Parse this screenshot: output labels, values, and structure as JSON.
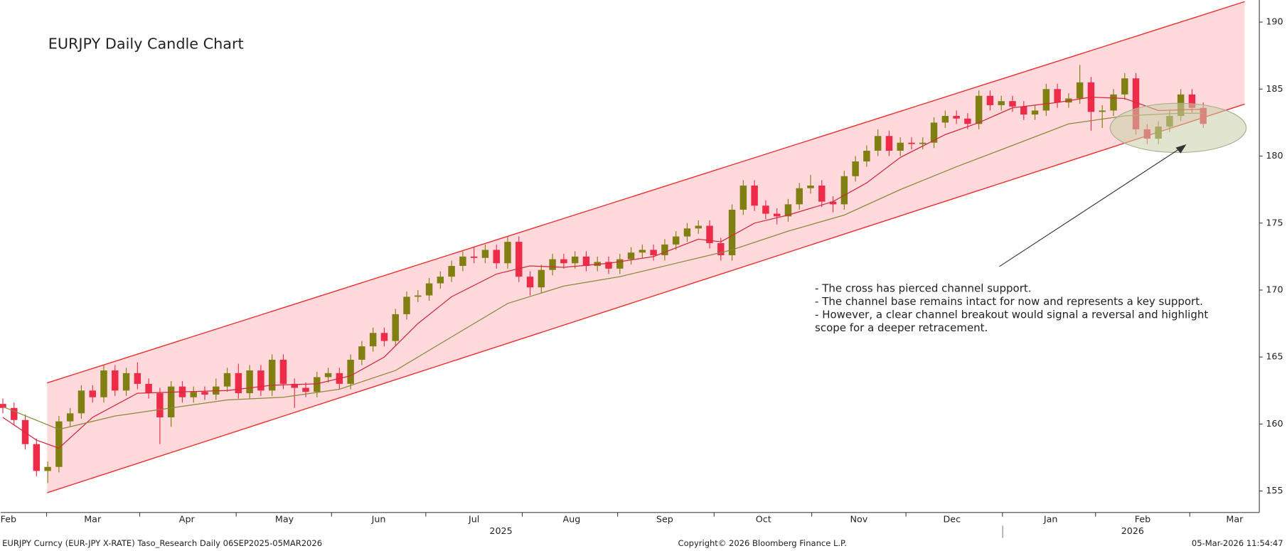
{
  "chart_data": {
    "type": "candlestick",
    "title": "EURJPY Daily Candle Chart",
    "annotation": [
      "- The cross has pierced channel support.",
      "- The channel base remains intact for now and represents a key support.",
      "- However, a clear channel breakout would signal a reversal and highlight",
      "scope for a deeper retracement."
    ],
    "footer_left": "EURJPY Curncy (EUR-JPY X-RATE) Taso_Research Daily 06SEP2025-05MAR2026",
    "footer_center": "Copyright© 2026 Bloomberg Finance L.P.",
    "footer_right": "05-Mar-2026 11:54:47",
    "up_color": "#7f7f12",
    "down_color": "#ee2c4a",
    "channel_color": "#ee2c2c",
    "channel_fill": "#ffd9dc",
    "xlim": [
      -0.2,
      112
    ],
    "ylim": [
      153.4,
      191.65
    ],
    "yticks": [
      155,
      160,
      165,
      170,
      175,
      180,
      185,
      190
    ],
    "month_separators": [
      3.9,
      12.2,
      20.8,
      29.3,
      37.7,
      46.3,
      54.8,
      63.4,
      72.1,
      80.5,
      89.1,
      97.4,
      105.8
    ],
    "xticks": [
      {
        "value": 0.5,
        "label": "Feb"
      },
      {
        "value": 8.0,
        "label": "Mar"
      },
      {
        "value": 16.4,
        "label": "Apr"
      },
      {
        "value": 25.1,
        "label": "May"
      },
      {
        "value": 33.5,
        "label": "Jun"
      },
      {
        "value": 42.0,
        "label": "Jul"
      },
      {
        "value": 50.7,
        "label": "Aug"
      },
      {
        "value": 59.0,
        "label": "Sep"
      },
      {
        "value": 67.8,
        "label": "Oct"
      },
      {
        "value": 76.3,
        "label": "Nov"
      },
      {
        "value": 84.6,
        "label": "Dec"
      },
      {
        "value": 93.4,
        "label": "Jan"
      },
      {
        "value": 101.6,
        "label": "Feb"
      },
      {
        "value": 109.8,
        "label": "Mar"
      }
    ],
    "year_ticks": [
      {
        "value": 44.4,
        "label": "2025"
      },
      {
        "value": 100.7,
        "label": "2026"
      }
    ],
    "channel": {
      "x": [
        3.95,
        110.7
      ],
      "upper": [
        163.07,
        191.53
      ],
      "lower": [
        154.87,
        183.88
      ]
    },
    "open": [
      161.5,
      161.2,
      160.3,
      158.5,
      156.5,
      156.8,
      160.2,
      160.8,
      162.5,
      162.0,
      164.0,
      162.5,
      163.8,
      163.0,
      162.3,
      160.5,
      162.8,
      162.0,
      162.4,
      162.2,
      162.8,
      163.8,
      162.3,
      164.0,
      162.5,
      164.8,
      163.0,
      162.7,
      162.4,
      163.5,
      163.8,
      163.0,
      164.8,
      165.8,
      166.8,
      166.2,
      168.2,
      169.5,
      169.6,
      170.5,
      171.0,
      171.8,
      172.5,
      172.4,
      173.0,
      172.0,
      173.6,
      171.0,
      170.2,
      171.5,
      172.3,
      172.0,
      172.5,
      171.8,
      172.1,
      171.6,
      172.3,
      172.8,
      173.0,
      172.6,
      173.4,
      174.0,
      174.6,
      174.8,
      173.5,
      172.6,
      176.0,
      177.8,
      176.3,
      175.7,
      175.5,
      176.4,
      177.6,
      177.8,
      176.6,
      176.4,
      178.5,
      179.6,
      180.4,
      181.5,
      180.4,
      181.0,
      180.9,
      181.0,
      182.5,
      183.0,
      182.8,
      182.4,
      184.5,
      183.8,
      184.1,
      183.7,
      183.1,
      183.4,
      185.0,
      184.0,
      184.3,
      185.5,
      183.3,
      183.4,
      184.6,
      185.8,
      182.0,
      181.3,
      182.2,
      183.0,
      184.6,
      183.6
    ],
    "high": [
      161.9,
      161.6,
      160.7,
      158.9,
      157.2,
      160.6,
      161.2,
      162.9,
      162.9,
      164.4,
      164.4,
      164.2,
      164.6,
      163.4,
      162.7,
      163.2,
      163.2,
      162.8,
      162.8,
      163.4,
      164.2,
      164.5,
      164.4,
      164.4,
      165.2,
      165.2,
      163.4,
      163.1,
      163.9,
      164.2,
      164.2,
      165.2,
      166.2,
      167.2,
      167.2,
      168.6,
      169.9,
      170.0,
      170.9,
      171.4,
      172.2,
      172.9,
      173.2,
      173.4,
      173.4,
      174.0,
      174.0,
      171.4,
      171.9,
      172.7,
      172.7,
      172.9,
      172.9,
      172.5,
      172.5,
      172.7,
      173.2,
      173.4,
      173.4,
      173.8,
      174.4,
      175.0,
      175.2,
      175.2,
      173.9,
      176.4,
      178.2,
      178.2,
      176.7,
      176.1,
      176.8,
      178.0,
      178.6,
      178.2,
      177.0,
      178.9,
      180.0,
      180.8,
      182.0,
      181.9,
      181.4,
      181.4,
      181.4,
      182.9,
      183.4,
      183.4,
      183.2,
      184.9,
      184.9,
      184.5,
      184.5,
      184.1,
      183.8,
      185.4,
      185.4,
      184.7,
      186.8,
      185.9,
      183.8,
      185.0,
      186.2,
      186.2,
      182.4,
      182.6,
      183.4,
      185.0,
      185.0,
      184.0
    ],
    "low": [
      160.8,
      159.9,
      158.1,
      156.1,
      155.6,
      156.4,
      159.8,
      160.4,
      161.6,
      161.6,
      162.1,
      162.1,
      162.6,
      161.9,
      158.5,
      159.8,
      161.6,
      161.6,
      161.8,
      161.8,
      162.4,
      161.9,
      161.9,
      162.1,
      162.1,
      162.6,
      161.2,
      162.0,
      162.0,
      163.1,
      162.6,
      162.6,
      164.4,
      165.4,
      165.8,
      165.8,
      167.8,
      169.1,
      169.2,
      170.1,
      170.6,
      171.4,
      172.0,
      172.0,
      171.6,
      171.6,
      170.6,
      169.6,
      169.8,
      171.1,
      171.6,
      171.6,
      171.4,
      171.4,
      171.2,
      171.2,
      171.9,
      172.4,
      172.2,
      172.2,
      173.0,
      173.6,
      174.2,
      173.1,
      172.2,
      172.2,
      175.6,
      175.9,
      175.3,
      174.9,
      175.1,
      176.0,
      177.2,
      176.2,
      175.8,
      176.0,
      178.1,
      179.2,
      180.0,
      180.0,
      180.0,
      180.5,
      180.5,
      180.6,
      182.1,
      182.4,
      182.0,
      182.0,
      183.4,
      183.4,
      183.3,
      182.7,
      182.7,
      183.0,
      183.6,
      183.6,
      183.9,
      181.9,
      182.1,
      183.0,
      184.2,
      181.6,
      180.9,
      180.9,
      181.8,
      182.6,
      183.2,
      182.1
    ],
    "close": [
      161.2,
      160.3,
      158.5,
      156.5,
      156.8,
      160.2,
      160.8,
      162.5,
      162.0,
      164.0,
      162.5,
      163.8,
      163.0,
      162.3,
      160.5,
      162.8,
      162.0,
      162.4,
      162.2,
      162.8,
      163.8,
      162.3,
      164.0,
      162.5,
      164.8,
      163.0,
      162.7,
      162.4,
      163.5,
      163.8,
      163.0,
      164.8,
      165.8,
      166.8,
      166.2,
      168.2,
      169.5,
      169.6,
      170.5,
      171.0,
      171.8,
      172.5,
      172.4,
      173.0,
      172.0,
      173.6,
      171.0,
      170.2,
      171.5,
      172.3,
      172.0,
      172.5,
      171.8,
      172.1,
      171.6,
      172.3,
      172.8,
      173.0,
      172.6,
      173.4,
      174.0,
      174.6,
      174.8,
      173.5,
      172.6,
      176.0,
      177.8,
      176.3,
      175.7,
      175.5,
      176.4,
      177.6,
      177.8,
      176.6,
      176.4,
      178.5,
      179.6,
      180.4,
      181.5,
      180.4,
      181.0,
      180.9,
      181.0,
      182.5,
      183.0,
      182.8,
      182.4,
      184.5,
      183.8,
      184.1,
      183.7,
      183.1,
      183.4,
      185.0,
      184.0,
      184.3,
      185.5,
      183.3,
      183.4,
      184.6,
      185.8,
      182.0,
      181.3,
      182.2,
      183.0,
      184.6,
      183.6,
      182.4
    ],
    "moving_averages": [
      {
        "color": "#d42a3c",
        "x": [
          0,
          3,
          5,
          8,
          12,
          16,
          20,
          24,
          28,
          31,
          34,
          37,
          40,
          44,
          47,
          50,
          54,
          58,
          62,
          64,
          67,
          70,
          74,
          77,
          80,
          84,
          87,
          90,
          94,
          97,
          100,
          103,
          107
        ],
        "values": [
          160.5,
          158.8,
          158.2,
          160.5,
          162.3,
          162.4,
          162.5,
          162.9,
          163.0,
          163.6,
          165.0,
          167.5,
          169.5,
          171.2,
          171.8,
          171.7,
          172.0,
          172.5,
          173.8,
          173.6,
          175.0,
          175.6,
          176.6,
          178.0,
          179.9,
          181.6,
          182.5,
          183.6,
          184.0,
          184.4,
          184.3,
          183.4,
          183.5
        ]
      },
      {
        "color": "#8a8a3a",
        "x": [
          0,
          5,
          10,
          15,
          20,
          25,
          30,
          35,
          40,
          45,
          50,
          55,
          60,
          65,
          70,
          75,
          80,
          85,
          90,
          95,
          100,
          105,
          107
        ],
        "values": [
          161.3,
          159.6,
          160.6,
          161.2,
          161.8,
          162.0,
          162.6,
          164.0,
          166.5,
          169.0,
          170.3,
          171.0,
          172.0,
          173.0,
          174.4,
          175.6,
          177.5,
          179.2,
          180.8,
          182.4,
          183.0,
          183.2,
          183.2
        ]
      }
    ]
  }
}
